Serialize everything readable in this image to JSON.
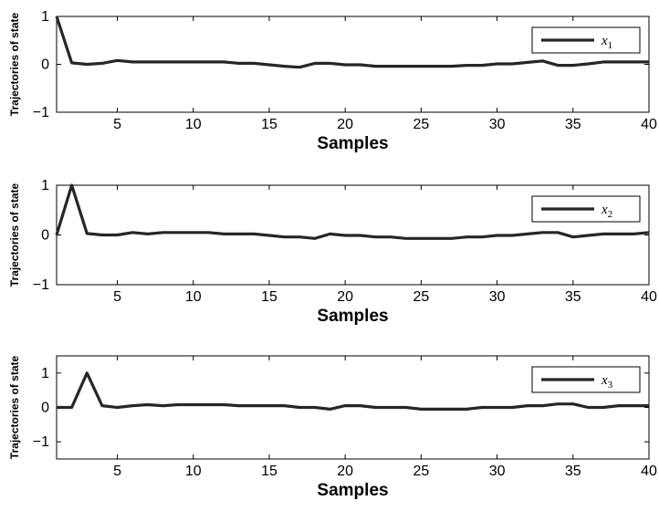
{
  "chart_data": [
    {
      "type": "line",
      "xlabel": "Samples",
      "ylabel": "Trajectories of state",
      "xlim": [
        1,
        40
      ],
      "ylim": [
        -1,
        1
      ],
      "xticks": [
        5,
        10,
        15,
        20,
        25,
        30,
        35,
        40
      ],
      "yticks": [
        -1,
        0,
        1
      ],
      "ytick_labels": [
        "−1",
        "0",
        "1"
      ],
      "legend_position": "top-right",
      "series": [
        {
          "name": "x1",
          "legend_main": "x",
          "legend_sub": "1",
          "x": [
            1,
            2,
            3,
            4,
            5,
            6,
            7,
            8,
            9,
            10,
            11,
            12,
            13,
            14,
            15,
            16,
            17,
            18,
            19,
            20,
            21,
            22,
            23,
            24,
            25,
            26,
            27,
            28,
            29,
            30,
            31,
            32,
            33,
            34,
            35,
            36,
            37,
            38,
            39,
            40
          ],
          "values": [
            1.0,
            0.03,
            0.0,
            0.02,
            0.08,
            0.05,
            0.05,
            0.05,
            0.05,
            0.05,
            0.05,
            0.05,
            0.02,
            0.02,
            -0.01,
            -0.04,
            -0.06,
            0.02,
            0.02,
            -0.01,
            -0.01,
            -0.04,
            -0.04,
            -0.04,
            -0.04,
            -0.04,
            -0.04,
            -0.02,
            -0.02,
            0.01,
            0.01,
            0.04,
            0.07,
            -0.02,
            -0.02,
            0.01,
            0.05,
            0.05,
            0.05,
            0.05
          ]
        }
      ]
    },
    {
      "type": "line",
      "xlabel": "Samples",
      "ylabel": "Trajectories of state",
      "xlim": [
        1,
        40
      ],
      "ylim": [
        -1,
        1
      ],
      "xticks": [
        5,
        10,
        15,
        20,
        25,
        30,
        35,
        40
      ],
      "yticks": [
        -1,
        0,
        1
      ],
      "ytick_labels": [
        "−1",
        "0",
        "1"
      ],
      "legend_position": "top-right",
      "series": [
        {
          "name": "x2",
          "legend_main": "x",
          "legend_sub": "2",
          "x": [
            1,
            2,
            3,
            4,
            5,
            6,
            7,
            8,
            9,
            10,
            11,
            12,
            13,
            14,
            15,
            16,
            17,
            18,
            19,
            20,
            21,
            22,
            23,
            24,
            25,
            26,
            27,
            28,
            29,
            30,
            31,
            32,
            33,
            34,
            35,
            36,
            37,
            38,
            39,
            40
          ],
          "values": [
            0.0,
            1.0,
            0.03,
            0.0,
            0.0,
            0.05,
            0.02,
            0.05,
            0.05,
            0.05,
            0.05,
            0.02,
            0.02,
            0.02,
            -0.01,
            -0.04,
            -0.04,
            -0.07,
            0.02,
            -0.01,
            -0.01,
            -0.04,
            -0.04,
            -0.07,
            -0.07,
            -0.07,
            -0.07,
            -0.04,
            -0.04,
            -0.01,
            -0.01,
            0.02,
            0.05,
            0.05,
            -0.04,
            -0.01,
            0.02,
            0.02,
            0.02,
            0.05
          ]
        }
      ]
    },
    {
      "type": "line",
      "xlabel": "Samples",
      "ylabel": "Trajectories of state",
      "xlim": [
        1,
        40
      ],
      "ylim": [
        -1.5,
        1.5
      ],
      "xticks": [
        5,
        10,
        15,
        20,
        25,
        30,
        35,
        40
      ],
      "yticks": [
        -1,
        0,
        1
      ],
      "ytick_labels": [
        "−1",
        "0",
        "1"
      ],
      "legend_position": "top-right",
      "series": [
        {
          "name": "x3",
          "legend_main": "x",
          "legend_sub": "3",
          "x": [
            1,
            2,
            3,
            4,
            5,
            6,
            7,
            8,
            9,
            10,
            11,
            12,
            13,
            14,
            15,
            16,
            17,
            18,
            19,
            20,
            21,
            22,
            23,
            24,
            25,
            26,
            27,
            28,
            29,
            30,
            31,
            32,
            33,
            34,
            35,
            36,
            37,
            38,
            39,
            40
          ],
          "values": [
            0.0,
            0.0,
            1.0,
            0.05,
            0.0,
            0.05,
            0.08,
            0.05,
            0.08,
            0.08,
            0.08,
            0.08,
            0.05,
            0.05,
            0.05,
            0.05,
            0.0,
            0.0,
            -0.05,
            0.05,
            0.05,
            0.0,
            0.0,
            0.0,
            -0.05,
            -0.05,
            -0.05,
            -0.05,
            0.0,
            0.0,
            0.0,
            0.05,
            0.05,
            0.1,
            0.1,
            0.0,
            0.0,
            0.05,
            0.05,
            0.05
          ]
        }
      ]
    }
  ]
}
